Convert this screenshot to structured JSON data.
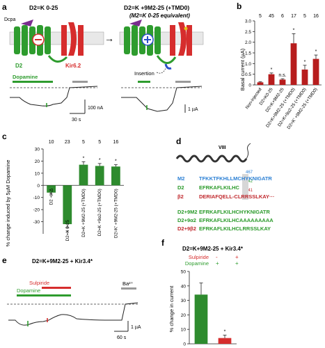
{
  "panels": {
    "a": {
      "letter": "a",
      "left_title": "D2=K 0-25",
      "right_title": "D2=K +9M2-25 (+TMD0)",
      "right_subtitle": "(M2=K 0-25 equivalent)",
      "dcpa_label": "Dcpa",
      "d2_label": "D2",
      "kir_label": "Kir6.2",
      "insertion_label": "Insertion",
      "dopamine_label": "Dopamine",
      "scale_left_current": "100 nA",
      "scale_time": "30 s",
      "scale_right_current": "1 µA",
      "colors": {
        "d2": "#2e9c2e",
        "kir": "#d62d2d",
        "dcpa": "#7a2c8f",
        "block": "#d62d2d",
        "open": "#2a4fc9",
        "drug_bar": "#2e9c2e",
        "ba_bar": "#999999"
      }
    },
    "b": {
      "letter": "b",
      "ylabel": "Basal current (µA)",
      "n_labels": [
        "5",
        "45",
        "6",
        "17",
        "5",
        "16"
      ],
      "sig_labels": [
        "*",
        "n.s.",
        "*",
        "*",
        "*"
      ],
      "chart_data": {
        "type": "bar",
        "categories": [
          "Non-injected",
          "D2=K0-25",
          "D2=K+9M2-25",
          "D2=K+9M2-25 (+TMD0)",
          "D2=K+9α2-25 (+TMD0)",
          "D2=K′ +9M2-25 (+TMD0)"
        ],
        "values": [
          0.12,
          0.5,
          0.25,
          1.95,
          0.72,
          1.22
        ],
        "errors": [
          0.03,
          0.06,
          0.04,
          0.45,
          0.2,
          0.18
        ],
        "ylim": [
          0,
          3.0
        ],
        "yticks": [
          "0",
          "0.5",
          "1.0",
          "1.5",
          "2.0",
          "2.5",
          "3.0"
        ],
        "ylabel": "Basal current (µA)",
        "color": "#b71d1d"
      }
    },
    "c": {
      "letter": "c",
      "ylabel": "% change induced by 5µM Dopamine",
      "n_labels": [
        "10",
        "23",
        "5",
        "5",
        "16"
      ],
      "sig_labels": [
        "*",
        "*",
        "*",
        "*"
      ],
      "chart_data": {
        "type": "bar",
        "categories": [
          "D2 + KΔ",
          "D2=K 0-25",
          "D2=K +9M2-25 (+TMD0)",
          "D2=K +9α2-25 (+TMD0)",
          "D2=K′ +9M2-25 (+TMD0)"
        ],
        "values": [
          -6,
          -32,
          17,
          16,
          15.5
        ],
        "errors": [
          2,
          3,
          2.5,
          2,
          1.5
        ],
        "ylim": [
          -40,
          30
        ],
        "yticks": [
          "-30",
          "-20",
          "-10",
          "0",
          "10",
          "20",
          "30"
        ],
        "ylabel": "% change induced by 5µM Dopamine",
        "color": "#2e8b2e"
      }
    },
    "d": {
      "letter": "d",
      "helix_label": "VIII",
      "num_top": "467",
      "num_mid": "442",
      "num_bot": "341",
      "rows": [
        {
          "name": "M2",
          "seq": "TFKKTFKHLLMCHYKNIGATR",
          "name_color": "#2a7fd4",
          "seq_color": "#2a7fd4"
        },
        {
          "name": "D2",
          "seq": "EFRKAFLKILHC",
          "name_color": "#2a9a2a",
          "seq_color": "#2a9a2a"
        },
        {
          "name": "β2",
          "seq": "DERIAFQELL-CLRRSSLKAY···",
          "name_color": "#c0282d",
          "seq_color": "#c0282d"
        },
        {
          "name": "D2+9M2",
          "seq": "EFRKAFLKILHCHYKNIGATR",
          "name_color": "#2a9a2a",
          "seq_color": "#2a9a2a"
        },
        {
          "name": "D2+9α2",
          "seq": "EFRKAFLKILHCAAAAAAAAA",
          "name_color": "#2a9a2a",
          "seq_color": "#2a9a2a"
        },
        {
          "name": "D2+9β2",
          "seq": "EFRKAFLKILHCLRRSSLKAY",
          "name_color": "#c0282d",
          "seq_color": "#2a9a2a"
        }
      ]
    },
    "e": {
      "letter": "e",
      "title": "D2=K+9M2-25 + Kir3.4*",
      "sulpiride_label": "Sulpiride",
      "dopamine_label": "Dopamine",
      "ba_label": "Ba²⁺",
      "scale_current": "1 µA",
      "scale_time": "60 s"
    },
    "f": {
      "letter": "f",
      "title": "D2=K+9M2-25 + Kir3.4*",
      "sulpiride_label": "Sulpiride",
      "dopamine_label": "Dopamine",
      "sulpiride_marks": [
        "-",
        "+"
      ],
      "dopamine_marks": [
        "+",
        "+"
      ],
      "ylabel": "% change in current",
      "sig_labels": [
        "*"
      ],
      "chart_data": {
        "type": "bar",
        "categories": [
          "Dopamine",
          "Dopamine + Sulpiride"
        ],
        "values": [
          34,
          4
        ],
        "errors": [
          8,
          2
        ],
        "ylim": [
          0,
          50
        ],
        "yticks": [
          "0",
          "10",
          "20",
          "30",
          "40",
          "50"
        ],
        "ylabel": "% change in current",
        "colors": [
          "#2e8b2e",
          "#d62d2d"
        ]
      }
    }
  }
}
